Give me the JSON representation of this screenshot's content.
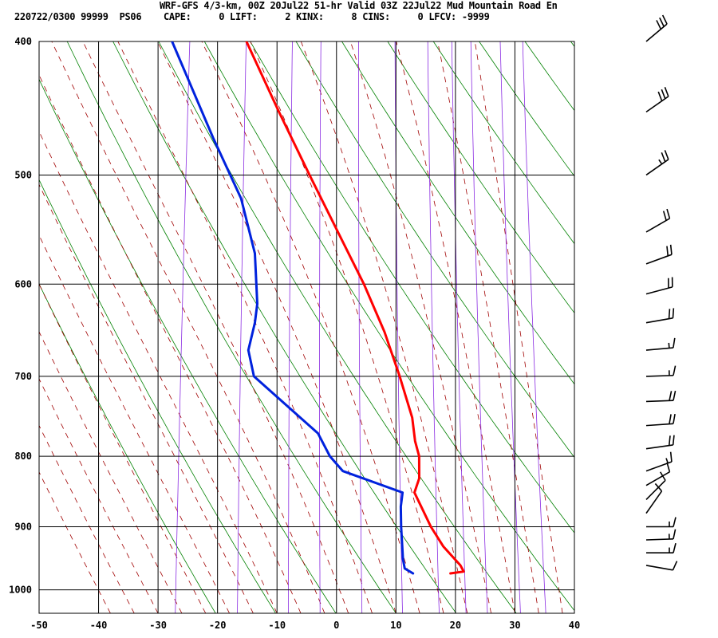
{
  "header": {
    "line1": "WRF-GFS 4/3-km, 00Z 20Jul22 51-hr Valid 03Z 22Jul22 Mud Mountain Road En",
    "line2": "220722/0300 99999  PS06    CAPE:     0 LIFT:     2 KINX:     8 CINS:     0 LFCV: -9999"
  },
  "chart_data": {
    "type": "line",
    "subtype": "skew-T log-P sounding",
    "xlim": [
      -50,
      40
    ],
    "x_ticks": [
      -50,
      -40,
      -30,
      -20,
      -10,
      0,
      10,
      20,
      30,
      40
    ],
    "p_ticks": [
      400,
      500,
      600,
      700,
      800,
      900,
      1000
    ],
    "p_range": [
      1040,
      400
    ],
    "grid": true,
    "series": [
      {
        "color": "#ff0000",
        "points": [
          {
            "p": 973,
            "t": 18.3
          },
          {
            "p": 970,
            "t": 20.5
          },
          {
            "p": 960,
            "t": 19.8
          },
          {
            "p": 930,
            "t": 16.5
          },
          {
            "p": 900,
            "t": 14.0
          },
          {
            "p": 850,
            "t": 10.5
          },
          {
            "p": 830,
            "t": 11.0
          },
          {
            "p": 800,
            "t": 10.5
          },
          {
            "p": 780,
            "t": 9.5
          },
          {
            "p": 750,
            "t": 8.5
          },
          {
            "p": 700,
            "t": 5.5
          },
          {
            "p": 650,
            "t": 2.0
          },
          {
            "p": 600,
            "t": -2.5
          },
          {
            "p": 550,
            "t": -8.0
          },
          {
            "p": 500,
            "t": -14.0
          },
          {
            "p": 450,
            "t": -20.5
          },
          {
            "p": 400,
            "t": -27.5
          }
        ]
      },
      {
        "color": "#0022dd",
        "points": [
          {
            "p": 973,
            "t": 12.0
          },
          {
            "p": 965,
            "t": 10.5
          },
          {
            "p": 950,
            "t": 10.0
          },
          {
            "p": 900,
            "t": 9.0
          },
          {
            "p": 870,
            "t": 8.5
          },
          {
            "p": 850,
            "t": 8.5
          },
          {
            "p": 820,
            "t": -2.0
          },
          {
            "p": 800,
            "t": -4.5
          },
          {
            "p": 770,
            "t": -7.0
          },
          {
            "p": 700,
            "t": -19.0
          },
          {
            "p": 670,
            "t": -20.5
          },
          {
            "p": 640,
            "t": -20.0
          },
          {
            "p": 620,
            "t": -20.0
          },
          {
            "p": 570,
            "t": -21.5
          },
          {
            "p": 520,
            "t": -25.0
          },
          {
            "p": 470,
            "t": -31.0
          },
          {
            "p": 400,
            "t": -40.0
          }
        ]
      }
    ],
    "wind_barbs": [
      {
        "p": 400,
        "dir": 230,
        "speed": 30
      },
      {
        "p": 450,
        "dir": 235,
        "speed": 30
      },
      {
        "p": 500,
        "dir": 235,
        "speed": 25
      },
      {
        "p": 550,
        "dir": 240,
        "speed": 20
      },
      {
        "p": 580,
        "dir": 250,
        "speed": 20
      },
      {
        "p": 610,
        "dir": 255,
        "speed": 20
      },
      {
        "p": 640,
        "dir": 260,
        "speed": 20
      },
      {
        "p": 670,
        "dir": 265,
        "speed": 15
      },
      {
        "p": 700,
        "dir": 268,
        "speed": 15
      },
      {
        "p": 730,
        "dir": 268,
        "speed": 20
      },
      {
        "p": 760,
        "dir": 266,
        "speed": 20
      },
      {
        "p": 790,
        "dir": 262,
        "speed": 20
      },
      {
        "p": 820,
        "dir": 250,
        "speed": 15
      },
      {
        "p": 840,
        "dir": 240,
        "speed": 10
      },
      {
        "p": 860,
        "dir": 225,
        "speed": 10
      },
      {
        "p": 880,
        "dir": 215,
        "speed": 10
      },
      {
        "p": 900,
        "dir": 270,
        "speed": 15
      },
      {
        "p": 920,
        "dir": 268,
        "speed": 15
      },
      {
        "p": 940,
        "dir": 270,
        "speed": 15
      },
      {
        "p": 960,
        "dir": 280,
        "speed": 10
      }
    ]
  }
}
